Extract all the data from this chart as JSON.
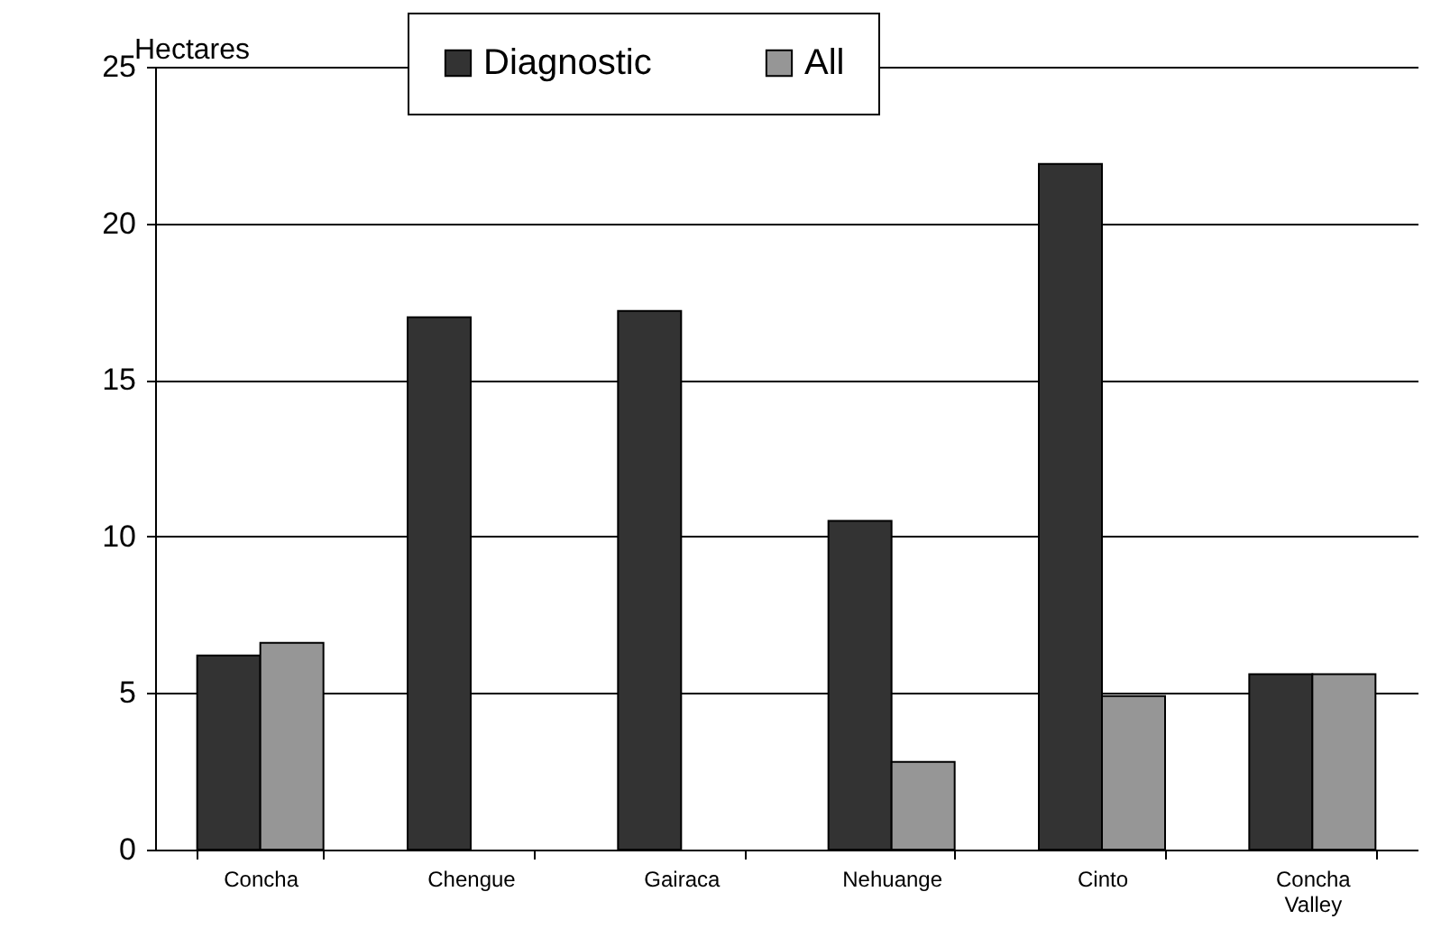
{
  "chart_data": {
    "type": "bar",
    "ylabel": "Hectares",
    "categories": [
      "Concha",
      "Chengue",
      "Gairaca",
      "Nehuange",
      "Cinto",
      "Concha Valley"
    ],
    "series": [
      {
        "name": "Diagnostic",
        "color": "#333333",
        "values": [
          6.2,
          17.0,
          17.2,
          10.5,
          21.9,
          5.6
        ]
      },
      {
        "name": "All",
        "color": "#969696",
        "values": [
          6.6,
          null,
          null,
          2.8,
          4.9,
          5.6
        ]
      }
    ],
    "ylim": [
      0,
      25
    ],
    "yticks": [
      0,
      5,
      10,
      15,
      20,
      25
    ],
    "grid": "y",
    "legend": "top"
  }
}
